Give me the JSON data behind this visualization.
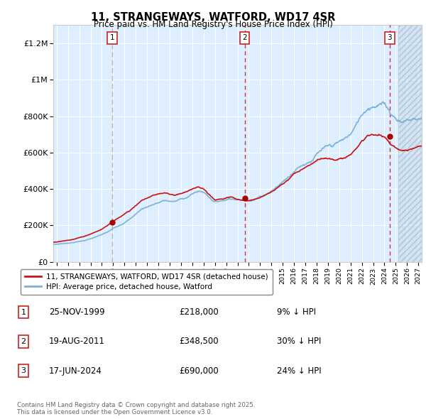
{
  "title": "11, STRANGEWAYS, WATFORD, WD17 4SR",
  "subtitle": "Price paid vs. HM Land Registry's House Price Index (HPI)",
  "ylim": [
    0,
    1300000
  ],
  "xlim_start": 1994.7,
  "xlim_end": 2027.3,
  "background_color": "#ffffff",
  "plot_bg_color": "#ddeeff",
  "grid_color": "#ffffff",
  "legend_label_red": "11, STRANGEWAYS, WATFORD, WD17 4SR (detached house)",
  "legend_label_blue": "HPI: Average price, detached house, Watford",
  "sale_dates": [
    1999.9,
    2011.63,
    2024.46
  ],
  "sale_prices": [
    218000,
    348500,
    690000
  ],
  "sale_labels": [
    "1",
    "2",
    "3"
  ],
  "annotation_rows": [
    {
      "label": "1",
      "date": "25-NOV-1999",
      "price": "£218,000",
      "note": "9% ↓ HPI"
    },
    {
      "label": "2",
      "date": "19-AUG-2011",
      "price": "£348,500",
      "note": "30% ↓ HPI"
    },
    {
      "label": "3",
      "date": "17-JUN-2024",
      "price": "£690,000",
      "note": "24% ↓ HPI"
    }
  ],
  "footer": "Contains HM Land Registry data © Crown copyright and database right 2025.\nThis data is licensed under the Open Government Licence v3.0.",
  "hpi_color": "#7bafd4",
  "price_color": "#cc1111",
  "sale_marker_color": "#aa0000",
  "vline1_color": "#888888",
  "vline23_color": "#cc2222",
  "hatch_color": "#bbccdd",
  "future_start": 2025.25,
  "label_box_color": "#cc2222",
  "yticks": [
    0,
    200000,
    400000,
    600000,
    800000,
    1000000,
    1200000
  ],
  "ytick_labels": [
    "£0",
    "£200K",
    "£400K",
    "£600K",
    "£800K",
    "£1M",
    "£1.2M"
  ]
}
